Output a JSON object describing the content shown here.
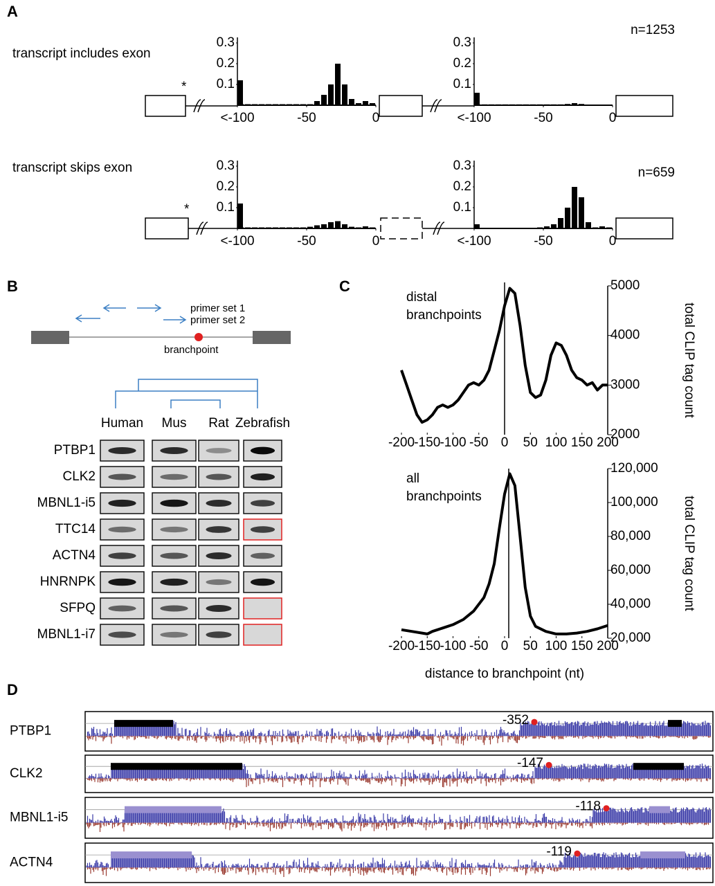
{
  "figure": {
    "panel_labels": [
      "A",
      "B",
      "C",
      "D"
    ],
    "panel_b": {
      "primers": [
        "primer set 1",
        "primer set 2"
      ],
      "branchpoint": "branchpoint",
      "species": [
        "Human",
        "Mus",
        "Rat",
        "Zebrafish"
      ],
      "genes": [
        "PTBP1",
        "CLK2",
        "MBNL1-i5",
        "TTC14",
        "ACTN4",
        "HNRNPK",
        "SFPQ",
        "MBNL1-i7"
      ]
    },
    "panel_d": {
      "tracks": [
        {
          "name": "PTBP1",
          "label": "-352"
        },
        {
          "name": "CLK2",
          "label": "-147"
        },
        {
          "name": "MBNL1-i5",
          "label": "-118"
        },
        {
          "name": "ACTN4",
          "label": "-119"
        }
      ]
    }
  },
  "chart_data": [
    {
      "type": "bar",
      "title": "transcript includes exon",
      "color": "#000000",
      "x": [
        -100,
        -97.5,
        -92.5,
        -87.5,
        -82.5,
        -77.5,
        -72.5,
        -67.5,
        -62.5,
        -57.5,
        -52.5,
        -47.5,
        -42.5,
        -37.5,
        -32.5,
        -27.5,
        -22.5,
        -17.5,
        -12.5,
        -7.5,
        -2.5
      ],
      "values": [
        0.12,
        0.005,
        0.005,
        0.005,
        0.005,
        0.005,
        0.005,
        0.005,
        0.005,
        0.005,
        0.005,
        0.005,
        0.02,
        0.05,
        0.1,
        0.2,
        0.1,
        0.03,
        0.01,
        0.02,
        0.01
      ],
      "xlim": [
        -100,
        0
      ],
      "xticks": [
        {
          "value": -100,
          "label": "<-100"
        },
        -50,
        0
      ],
      "ylim": [
        0,
        0.3
      ],
      "yticks": [
        0.1,
        0.2,
        0.3
      ]
    },
    {
      "type": "bar",
      "annotation": "n=1253",
      "color": "#000000",
      "x": [
        -100,
        -97.5,
        -92.5,
        -87.5,
        -82.5,
        -77.5,
        -72.5,
        -67.5,
        -62.5,
        -57.5,
        -52.5,
        -47.5,
        -42.5,
        -37.5,
        -32.5,
        -27.5,
        -22.5,
        -17.5,
        -12.5,
        -7.5,
        -2.5
      ],
      "values": [
        0.06,
        0.004,
        0.004,
        0.004,
        0.004,
        0.004,
        0.004,
        0.004,
        0.004,
        0.004,
        0.004,
        0.004,
        0.004,
        0.004,
        0.006,
        0.01,
        0.006,
        0.003,
        0.003,
        0.003,
        0.003
      ],
      "xlim": [
        -100,
        0
      ],
      "xticks": [
        {
          "value": -100,
          "label": "<-100"
        },
        -50,
        0
      ],
      "ylim": [
        0,
        0.3
      ],
      "yticks": [
        0.1,
        0.2,
        0.3
      ]
    },
    {
      "type": "bar",
      "title": "transcript skips exon",
      "color": "#000000",
      "x": [
        -100,
        -97.5,
        -92.5,
        -87.5,
        -82.5,
        -77.5,
        -72.5,
        -67.5,
        -62.5,
        -57.5,
        -52.5,
        -47.5,
        -42.5,
        -37.5,
        -32.5,
        -27.5,
        -22.5,
        -17.5,
        -12.5,
        -7.5,
        -2.5
      ],
      "values": [
        0.12,
        0.005,
        0.005,
        0.005,
        0.005,
        0.005,
        0.005,
        0.005,
        0.005,
        0.005,
        0.005,
        0.008,
        0.015,
        0.02,
        0.03,
        0.035,
        0.02,
        0.008,
        0.005,
        0.01,
        0.005
      ],
      "xlim": [
        -100,
        0
      ],
      "xticks": [
        {
          "value": -100,
          "label": "<-100"
        },
        -50,
        0
      ],
      "ylim": [
        0,
        0.3
      ],
      "yticks": [
        0.1,
        0.2,
        0.3
      ]
    },
    {
      "type": "bar",
      "annotation": "n=659",
      "color": "#000000",
      "x": [
        -100,
        -97.5,
        -92.5,
        -87.5,
        -82.5,
        -77.5,
        -72.5,
        -67.5,
        -62.5,
        -57.5,
        -52.5,
        -47.5,
        -42.5,
        -37.5,
        -32.5,
        -27.5,
        -22.5,
        -17.5,
        -12.5,
        -7.5,
        -2.5
      ],
      "values": [
        0.02,
        0.003,
        0.003,
        0.003,
        0.003,
        0.003,
        0.003,
        0.003,
        0.003,
        0.003,
        0.005,
        0.01,
        0.02,
        0.05,
        0.1,
        0.2,
        0.15,
        0.03,
        0.005,
        0.01,
        0.005
      ],
      "xlim": [
        -100,
        0
      ],
      "xticks": [
        {
          "value": -100,
          "label": "<-100"
        },
        -50,
        0
      ],
      "ylim": [
        0,
        0.3
      ],
      "yticks": [
        0.1,
        0.2,
        0.3
      ]
    },
    {
      "type": "line",
      "annotation": [
        "distal",
        "branchpoints"
      ],
      "ylabel": "total CLIP tag count",
      "color": "#000000",
      "x": [
        -200,
        -190,
        -180,
        -170,
        -160,
        -150,
        -140,
        -130,
        -120,
        -110,
        -100,
        -90,
        -80,
        -70,
        -60,
        -50,
        -40,
        -30,
        -20,
        -10,
        0,
        10,
        20,
        30,
        40,
        50,
        60,
        70,
        80,
        90,
        100,
        110,
        120,
        130,
        140,
        150,
        160,
        170,
        180,
        190,
        200
      ],
      "values": [
        3300,
        3000,
        2700,
        2400,
        2250,
        2300,
        2400,
        2550,
        2600,
        2550,
        2600,
        2700,
        2850,
        3000,
        3050,
        3000,
        3100,
        3300,
        3700,
        4100,
        4600,
        4950,
        4850,
        4200,
        3400,
        2850,
        2750,
        2800,
        3100,
        3600,
        3850,
        3800,
        3600,
        3300,
        3150,
        3100,
        3000,
        3050,
        2900,
        3000,
        3000
      ],
      "xlim": [
        -200,
        200
      ],
      "xticks": [
        -200,
        -150,
        -100,
        -50,
        0,
        50,
        100,
        150,
        200
      ],
      "ylim": [
        2000,
        5000
      ],
      "yticks": [
        2000,
        3000,
        4000,
        5000
      ]
    },
    {
      "type": "line",
      "annotation": [
        "all",
        "branchpoints"
      ],
      "ylabel": "total CLIP tag count",
      "xlabel": "distance to branchpoint (nt)",
      "color": "#000000",
      "x": [
        -200,
        -180,
        -160,
        -150,
        -140,
        -120,
        -100,
        -80,
        -60,
        -40,
        -30,
        -20,
        -10,
        0,
        10,
        20,
        30,
        40,
        50,
        60,
        80,
        100,
        120,
        140,
        160,
        180,
        200
      ],
      "values": [
        25000,
        24000,
        23000,
        22500,
        24000,
        26000,
        28000,
        31000,
        36000,
        44000,
        52000,
        64000,
        85000,
        105000,
        117000,
        110000,
        80000,
        50000,
        33000,
        27000,
        24000,
        22500,
        22500,
        23000,
        24000,
        25500,
        27500
      ],
      "xlim": [
        -200,
        200
      ],
      "xticks": [
        -200,
        -150,
        -100,
        -50,
        0,
        50,
        100,
        150,
        200
      ],
      "ylim": [
        20000,
        120000
      ],
      "yticks": [
        {
          "value": 20000,
          "label": "20,000"
        },
        {
          "value": 40000,
          "label": "40,000"
        },
        {
          "value": 60000,
          "label": "60,000"
        },
        {
          "value": 80000,
          "label": "80,000"
        },
        {
          "value": 100000,
          "label": "100,000"
        },
        {
          "value": 120000,
          "label": "120,000"
        }
      ]
    }
  ]
}
